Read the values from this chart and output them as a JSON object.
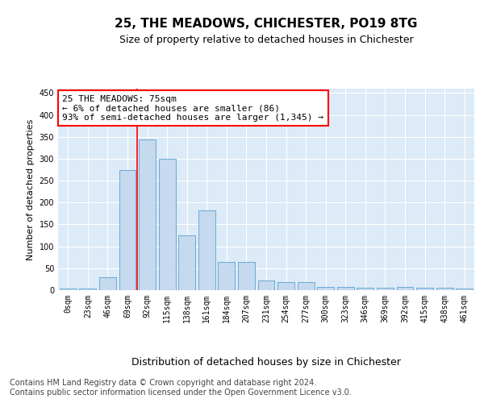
{
  "title1": "25, THE MEADOWS, CHICHESTER, PO19 8TG",
  "title2": "Size of property relative to detached houses in Chichester",
  "xlabel": "Distribution of detached houses by size in Chichester",
  "ylabel": "Number of detached properties",
  "bar_labels": [
    "0sqm",
    "23sqm",
    "46sqm",
    "69sqm",
    "92sqm",
    "115sqm",
    "138sqm",
    "161sqm",
    "184sqm",
    "207sqm",
    "231sqm",
    "254sqm",
    "277sqm",
    "300sqm",
    "323sqm",
    "346sqm",
    "369sqm",
    "392sqm",
    "415sqm",
    "438sqm",
    "461sqm"
  ],
  "bar_values": [
    3,
    3,
    30,
    275,
    345,
    300,
    125,
    183,
    65,
    65,
    22,
    18,
    18,
    8,
    8,
    5,
    5,
    8,
    5,
    5,
    3
  ],
  "bar_color": "#c5d9ef",
  "bar_edge_color": "#6aaad4",
  "vline_color": "red",
  "vline_x": 3.5,
  "annotation_text": "25 THE MEADOWS: 75sqm\n← 6% of detached houses are smaller (86)\n93% of semi-detached houses are larger (1,345) →",
  "annotation_box_facecolor": "white",
  "annotation_box_edgecolor": "red",
  "ylim": [
    0,
    460
  ],
  "yticks": [
    0,
    50,
    100,
    150,
    200,
    250,
    300,
    350,
    400,
    450
  ],
  "footer1": "Contains HM Land Registry data © Crown copyright and database right 2024.",
  "footer2": "Contains public sector information licensed under the Open Government Licence v3.0.",
  "figure_bg_color": "#ffffff",
  "plot_bg_color": "#ddeaf7",
  "title1_fontsize": 11,
  "title2_fontsize": 9,
  "xlabel_fontsize": 9,
  "ylabel_fontsize": 8,
  "tick_fontsize": 7,
  "annotation_fontsize": 8,
  "footer_fontsize": 7
}
